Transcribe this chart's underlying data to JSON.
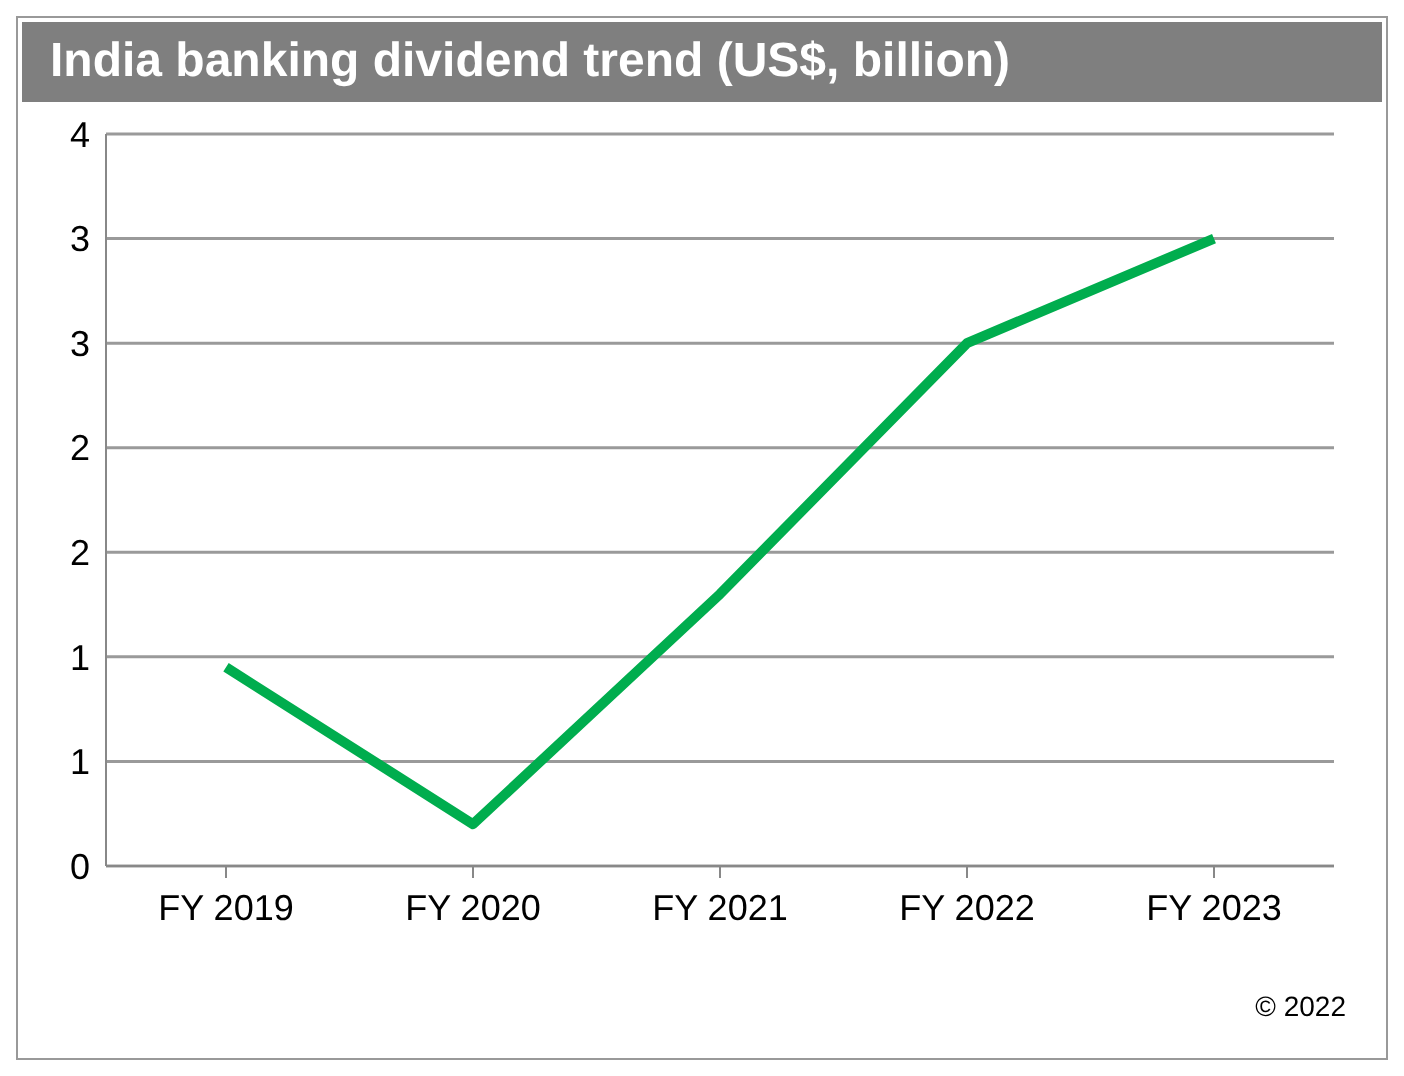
{
  "chart_data": {
    "type": "line",
    "title": "India banking dividend trend (US$, billion)",
    "categories": [
      "FY 2019",
      "FY 2020",
      "FY 2021",
      "FY 2022",
      "FY 2023"
    ],
    "series": [
      {
        "color": "#00ad4e",
        "values": [
          0.95,
          0.2,
          1.3,
          2.5,
          3.0
        ]
      }
    ],
    "ylim": [
      0,
      3.5
    ],
    "yticks": [
      {
        "value": 0,
        "label": "0"
      },
      {
        "value": 0.5,
        "label": "1"
      },
      {
        "value": 1,
        "label": "1"
      },
      {
        "value": 1.5,
        "label": "2"
      },
      {
        "value": 2,
        "label": "2"
      },
      {
        "value": 2.5,
        "label": "3"
      },
      {
        "value": 3,
        "label": "3"
      },
      {
        "value": 3.5,
        "label": "4"
      }
    ],
    "grid": "y",
    "legend": false,
    "marker": "none",
    "line_style": "solid",
    "annotations": [
      "© 2022"
    ]
  }
}
